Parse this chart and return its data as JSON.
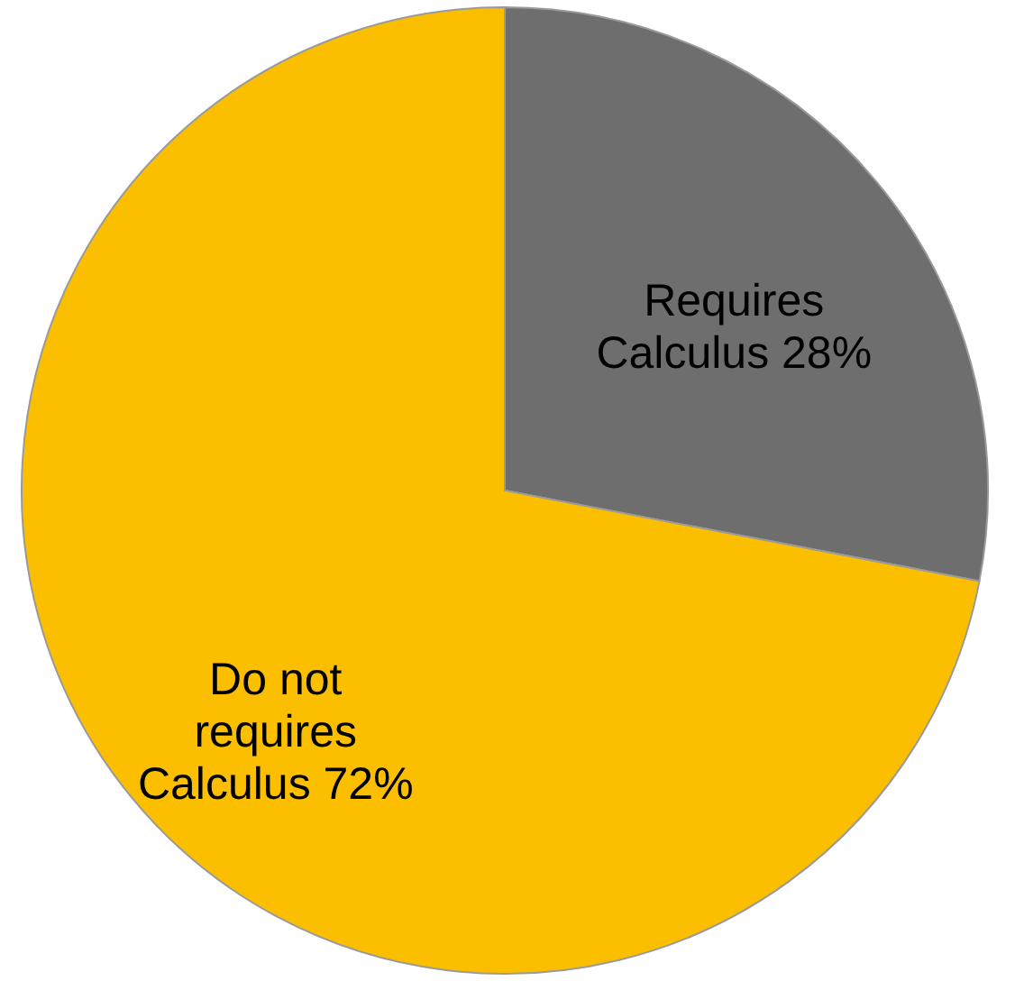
{
  "chart_data": {
    "type": "pie",
    "categories": [
      "Requires Calculus",
      "Do not requires Calculus"
    ],
    "values": [
      28,
      72
    ],
    "colors": [
      "#6e6e6e",
      "#fbbf00"
    ],
    "value_labels": [
      "28%",
      "72%"
    ]
  }
}
